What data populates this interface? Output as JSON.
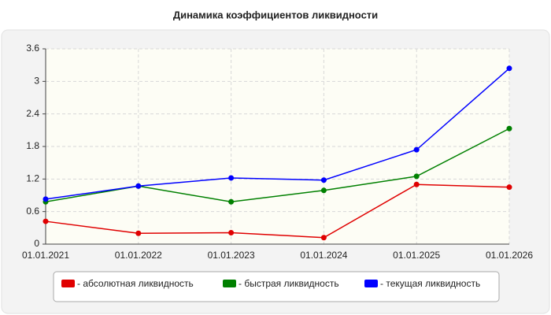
{
  "chart_data": {
    "type": "line",
    "title": "Динамика коэффициентов ликвидности",
    "categories": [
      "01.01.2021",
      "01.01.2022",
      "01.01.2023",
      "01.01.2024",
      "01.01.2025",
      "01.01.2026"
    ],
    "series": [
      {
        "name": "- абсолютная ликвидность",
        "color": "#e00000",
        "values": [
          0.42,
          0.2,
          0.21,
          0.12,
          1.1,
          1.05
        ]
      },
      {
        "name": "- быстрая ликвидность",
        "color": "#008000",
        "values": [
          0.78,
          1.07,
          0.78,
          0.99,
          1.25,
          2.13
        ]
      },
      {
        "name": "- текущая ликвидность",
        "color": "#0000ff",
        "values": [
          0.83,
          1.07,
          1.22,
          1.18,
          1.74,
          3.24
        ]
      }
    ],
    "ylim": [
      0,
      3.6
    ],
    "yticks": [
      0,
      0.6,
      1.2,
      1.8,
      2.4,
      3,
      3.6
    ],
    "grid": true
  }
}
